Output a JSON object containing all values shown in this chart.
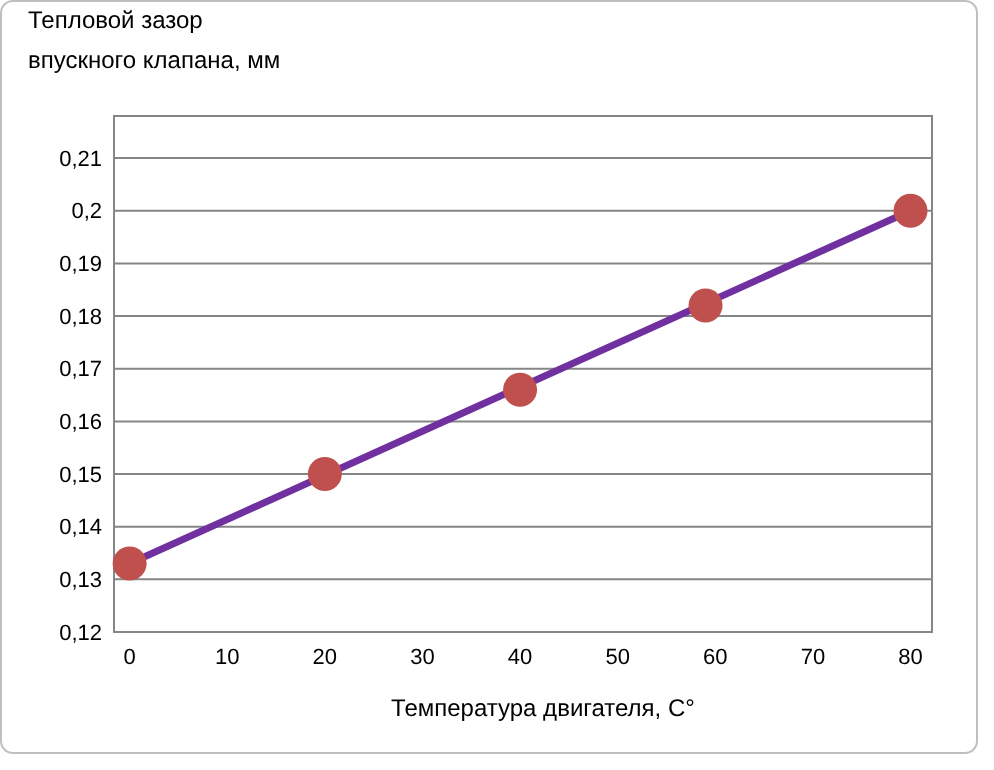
{
  "chart_data": {
    "type": "scatter",
    "ylabel": "Тепловой зазор\nвпускного клапана, мм",
    "xlabel": "Температура двигателя, С°",
    "series": [
      {
        "type": "line",
        "color": "#7030a0",
        "x": [
          0,
          80
        ],
        "values": [
          0.133,
          0.2
        ],
        "marker": "none"
      },
      {
        "color": "#c0504d",
        "x": [
          0,
          20,
          40,
          59,
          80
        ],
        "values": [
          0.133,
          0.15,
          0.166,
          0.182,
          0.2
        ],
        "marker": "circle"
      }
    ],
    "xlim": [
      -1.6,
      82.2
    ],
    "xticks": [
      0,
      10,
      20,
      30,
      40,
      50,
      60,
      70,
      80
    ],
    "ylim": [
      0.12,
      0.218
    ],
    "yticks": [
      {
        "value": 0.12,
        "label": "0,12"
      },
      {
        "value": 0.13,
        "label": "0,13"
      },
      {
        "value": 0.14,
        "label": "0,14"
      },
      {
        "value": 0.15,
        "label": "0,15"
      },
      {
        "value": 0.16,
        "label": "0,16"
      },
      {
        "value": 0.17,
        "label": "0,17"
      },
      {
        "value": 0.18,
        "label": "0,18"
      },
      {
        "value": 0.19,
        "label": "0,19"
      },
      {
        "value": 0.2,
        "label": "0,2"
      },
      {
        "value": 0.21,
        "label": "0,21"
      }
    ],
    "grid": "y"
  }
}
